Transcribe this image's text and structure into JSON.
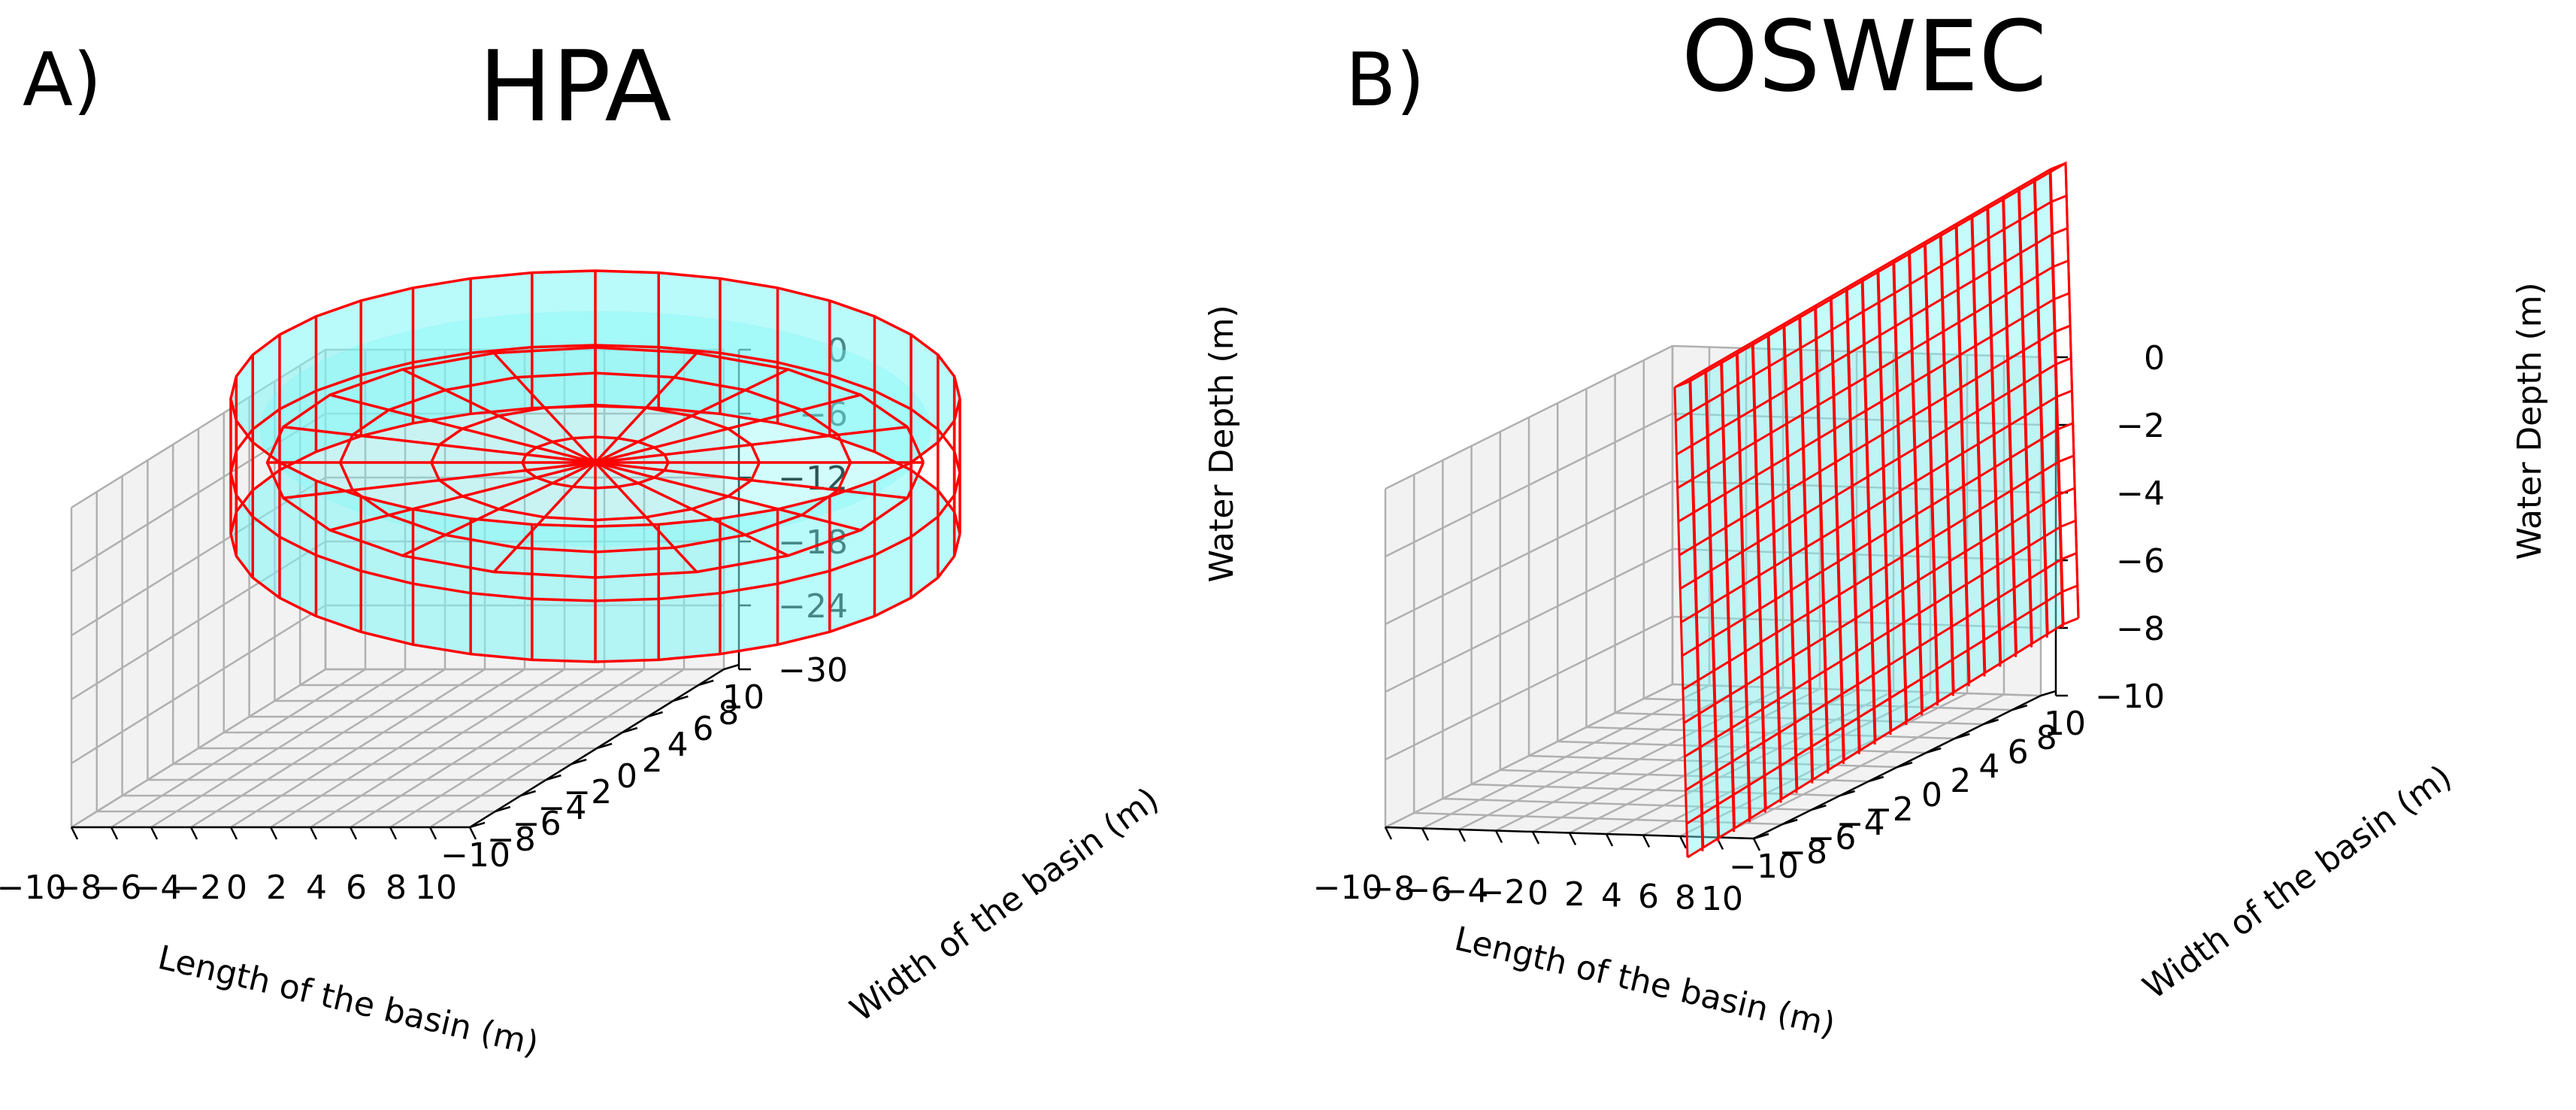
{
  "figure": {
    "panels": [
      {
        "label": "A)",
        "title": "HPA",
        "xlabel": "Length of the basin (m)",
        "ylabel": "Width of the basin (m)",
        "zlabel": "Water Depth (m)",
        "xticks": [
          "−10",
          "−8",
          "−6",
          "−4",
          "−2",
          "0",
          "2",
          "4",
          "6",
          "8",
          "10"
        ],
        "yticks": [
          "−10",
          "−8",
          "−6",
          "−4",
          "−2",
          "0",
          "2",
          "4",
          "6",
          "8",
          "10"
        ],
        "zticks": [
          "0",
          "−6",
          "−12",
          "−18",
          "−24",
          "−30"
        ],
        "zlim": [
          -30,
          0
        ],
        "body": "cylindrical float"
      },
      {
        "label": "B)",
        "title": "OSWEC",
        "xlabel": "Length of the basin (m)",
        "ylabel": "Width of the basin (m)",
        "zlabel": "Water Depth (m)",
        "xticks": [
          "−10",
          "−8",
          "−6",
          "−4",
          "−2",
          "0",
          "2",
          "4",
          "6",
          "8",
          "10"
        ],
        "yticks": [
          "−10",
          "−8",
          "−6",
          "−4",
          "−2",
          "0",
          "2",
          "4",
          "6",
          "8",
          "10"
        ],
        "zticks": [
          "0",
          "−2",
          "−4",
          "−6",
          "−8",
          "−10"
        ],
        "zlim": [
          -10,
          0
        ],
        "body": "flap plate"
      }
    ],
    "colors": {
      "mesh_edge": "#ff0000",
      "mesh_face": "#7ff6f6",
      "pane": "#f2f2f2",
      "grid": "#b0b0b0"
    }
  }
}
